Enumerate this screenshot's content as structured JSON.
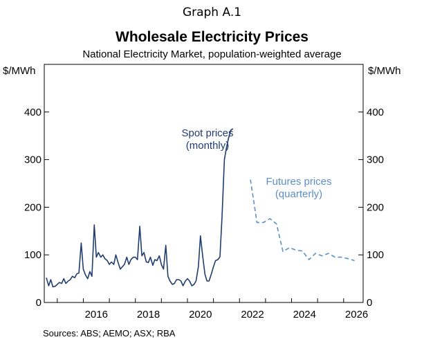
{
  "header": {
    "graph_number": "Graph A.1",
    "title": "Wholesale Electricity Prices",
    "subtitle": "National Electricity Market, population-weighted average"
  },
  "footer": {
    "sources": "Sources: ABS; AEMO; ASX; RBA"
  },
  "colors": {
    "spot": "#1f3c6e",
    "futures": "#5b8ec9",
    "axis": "#000000"
  },
  "chart_data": {
    "type": "line",
    "title": "Wholesale Electricity Prices",
    "subtitle": "National Electricity Market, population-weighted average",
    "ylabel_left": "$/MWh",
    "ylabel_right": "$/MWh",
    "ylim": [
      0,
      500
    ],
    "yticks": [
      0,
      100,
      200,
      300,
      400
    ],
    "xlim": [
      2014.5,
      2026.75
    ],
    "xticks": [
      2016,
      2018,
      2020,
      2022,
      2024,
      2026
    ],
    "grid": false,
    "legend": "none (inline annotations)",
    "annotations": [
      {
        "series": "spot",
        "lines": [
          "Spot prices",
          "(monthly)"
        ]
      },
      {
        "series": "futures",
        "lines": [
          "Futures prices",
          "(quarterly)"
        ]
      }
    ],
    "series": [
      {
        "name": "Spot prices (monthly)",
        "style": "solid",
        "x": [
          2014.58,
          2014.67,
          2014.75,
          2014.83,
          2014.92,
          2015.0,
          2015.08,
          2015.17,
          2015.25,
          2015.33,
          2015.42,
          2015.5,
          2015.58,
          2015.67,
          2015.75,
          2015.83,
          2015.92,
          2016.0,
          2016.08,
          2016.17,
          2016.25,
          2016.33,
          2016.42,
          2016.5,
          2016.58,
          2016.67,
          2016.75,
          2016.83,
          2016.92,
          2017.0,
          2017.08,
          2017.17,
          2017.25,
          2017.33,
          2017.42,
          2017.5,
          2017.58,
          2017.67,
          2017.75,
          2017.83,
          2017.92,
          2018.0,
          2018.08,
          2018.17,
          2018.25,
          2018.33,
          2018.42,
          2018.5,
          2018.58,
          2018.67,
          2018.75,
          2018.83,
          2018.92,
          2019.0,
          2019.08,
          2019.17,
          2019.25,
          2019.33,
          2019.42,
          2019.5,
          2019.58,
          2019.67,
          2019.75,
          2019.83,
          2019.92,
          2020.0,
          2020.08,
          2020.17,
          2020.25,
          2020.33,
          2020.42,
          2020.5,
          2020.58,
          2020.67,
          2020.75,
          2020.83,
          2020.92,
          2021.0,
          2021.08,
          2021.17,
          2021.25,
          2021.33,
          2021.42,
          2021.5,
          2021.58,
          2021.67,
          2021.75,
          2021.83,
          2021.92,
          2022.0,
          2022.08,
          2022.17
        ],
        "values": [
          52,
          35,
          48,
          33,
          34,
          38,
          42,
          40,
          50,
          40,
          45,
          48,
          55,
          52,
          60,
          62,
          125,
          70,
          58,
          50,
          65,
          55,
          163,
          95,
          105,
          95,
          100,
          92,
          88,
          80,
          85,
          80,
          100,
          85,
          70,
          75,
          80,
          95,
          80,
          90,
          95,
          95,
          90,
          160,
          98,
          105,
          85,
          84,
          95,
          78,
          90,
          88,
          98,
          80,
          70,
          120,
          55,
          45,
          38,
          40,
          48,
          48,
          45,
          35,
          45,
          50,
          45,
          35,
          38,
          45,
          75,
          140,
          100,
          60,
          45,
          45,
          60,
          75,
          88,
          90,
          96,
          180,
          300,
          325,
          345,
          362,
          365,
          null,
          null,
          null,
          null,
          null
        ]
      },
      {
        "name": "Futures prices (quarterly)",
        "style": "dashed",
        "x": [
          2022.42,
          2022.67,
          2022.92,
          2023.17,
          2023.42,
          2023.67,
          2023.92,
          2024.17,
          2024.42,
          2024.67,
          2024.92,
          2025.17,
          2025.42,
          2025.67,
          2025.92,
          2026.17,
          2026.42
        ],
        "values": [
          258,
          168,
          168,
          176,
          165,
          107,
          115,
          110,
          108,
          90,
          103,
          98,
          103,
          95,
          95,
          92,
          88
        ]
      }
    ]
  }
}
